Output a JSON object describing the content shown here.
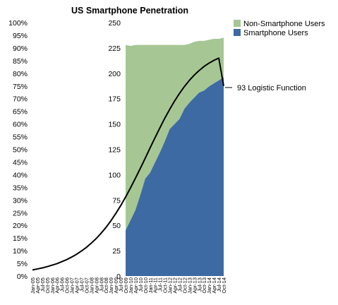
{
  "chart_data": {
    "type": "area",
    "title": "US Smartphone Penetration",
    "colors": {
      "smartphone": "#3e6aa3",
      "non_smartphone": "#a6c794",
      "logistic": "#000000"
    },
    "left_axis": {
      "ylim": [
        0,
        100
      ],
      "ticks": [
        {
          "value": 0,
          "label": "0%"
        },
        {
          "value": 5,
          "label": "5%"
        },
        {
          "value": 10,
          "label": "10%"
        },
        {
          "value": 15,
          "label": "15%"
        },
        {
          "value": 20,
          "label": "20%"
        },
        {
          "value": 25,
          "label": "25%"
        },
        {
          "value": 30,
          "label": "30%"
        },
        {
          "value": 35,
          "label": "35%"
        },
        {
          "value": 40,
          "label": "40%"
        },
        {
          "value": 45,
          "label": "45%"
        },
        {
          "value": 50,
          "label": "50%"
        },
        {
          "value": 55,
          "label": "55%"
        },
        {
          "value": 60,
          "label": "60%"
        },
        {
          "value": 65,
          "label": "65%"
        },
        {
          "value": 70,
          "label": "70%"
        },
        {
          "value": 75,
          "label": "75%"
        },
        {
          "value": 80,
          "label": "80%"
        },
        {
          "value": 85,
          "label": "85%"
        },
        {
          "value": 90,
          "label": "90%"
        },
        {
          "value": 95,
          "label": "95%"
        },
        {
          "value": 100,
          "label": "100%"
        }
      ]
    },
    "right_axis": {
      "ylim": [
        0,
        250
      ],
      "ticks": [
        {
          "value": 0,
          "label": "0"
        },
        {
          "value": 25,
          "label": "25"
        },
        {
          "value": 50,
          "label": "50"
        },
        {
          "value": 75,
          "label": "75"
        },
        {
          "value": 100,
          "label": "100"
        },
        {
          "value": 125,
          "label": "125"
        },
        {
          "value": 150,
          "label": "150"
        },
        {
          "value": 175,
          "label": "175"
        },
        {
          "value": 200,
          "label": "200"
        },
        {
          "value": 225,
          "label": "225"
        },
        {
          "value": 250,
          "label": "250"
        }
      ]
    },
    "x_axis": {
      "categories": [
        "Jan-05",
        "Apr-05",
        "Jul-05",
        "Oct-05",
        "Jan-06",
        "Apr-06",
        "Jul-06",
        "Oct-06",
        "Jan-07",
        "Apr-07",
        "Jul-07",
        "Oct-07",
        "Jan-08",
        "Apr-08",
        "Jul-08",
        "Oct-08",
        "Jan-09",
        "Apr-09",
        "Jul-09",
        "Oct-09",
        "Jan-10",
        "Apr-10",
        "Jul-10",
        "Oct-10",
        "Jan-11",
        "Apr-11",
        "Jul-11",
        "Oct-11",
        "Jan-12",
        "Apr-12",
        "Jul-12",
        "Oct-12",
        "Jan-13",
        "Apr-13",
        "Jul-13",
        "Oct-13",
        "Jan-14",
        "Apr-14",
        "Jul-14",
        "Oct-14"
      ]
    },
    "legend": {
      "position": "top-right",
      "entries": [
        {
          "label": "Non-Smartphone Users",
          "color": "#a6c794"
        },
        {
          "label": "Smartphone Users",
          "color": "#3e6aa3"
        }
      ]
    },
    "annotation": {
      "label": "93 Logistic Function"
    },
    "series": [
      {
        "name": "Smartphone Users",
        "axis": "right",
        "start_index": 19,
        "values": [
          45,
          55,
          65,
          80,
          96,
          102,
          112,
          122,
          133,
          145,
          150,
          155,
          165,
          171,
          176,
          181,
          183,
          187,
          190,
          193,
          196
        ]
      },
      {
        "name": "Non-Smartphone Users",
        "axis": "right",
        "start_index": 19,
        "values": [
          228,
          227,
          228,
          228,
          228,
          228,
          228,
          228,
          228,
          228,
          228,
          228,
          228,
          229,
          231,
          232,
          232,
          233,
          234,
          234,
          235
        ]
      },
      {
        "name": "93 Logistic Function",
        "axis": "left",
        "values": [
          2.4,
          2.8,
          3.2,
          3.7,
          4.3,
          4.9,
          5.7,
          6.5,
          7.5,
          8.6,
          9.9,
          11.3,
          13.0,
          14.8,
          16.9,
          19.2,
          21.8,
          24.7,
          27.8,
          31.2,
          34.8,
          38.6,
          42.5,
          46.5,
          50.6,
          54.6,
          58.5,
          62.3,
          65.8,
          69.1,
          72.1,
          74.8,
          77.2,
          79.3,
          81.1,
          82.7,
          84.0,
          85.1,
          86.0,
          75
        ]
      }
    ]
  }
}
